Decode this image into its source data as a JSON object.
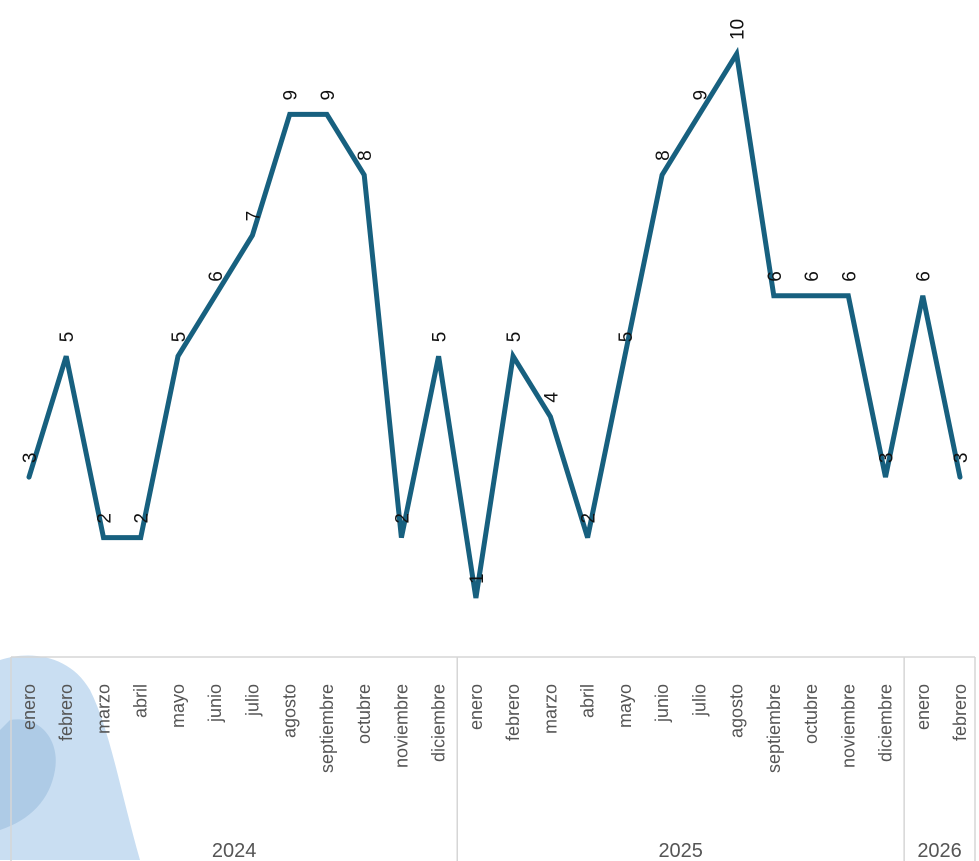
{
  "chart_data": {
    "type": "line",
    "series": [
      {
        "x": [
          "enero",
          "febrero",
          "marzo",
          "abril",
          "mayo",
          "junio",
          "julio",
          "agosto",
          "septiembre",
          "octubre",
          "noviembre",
          "diciembre",
          "enero",
          "febrero",
          "marzo",
          "abril",
          "mayo",
          "junio",
          "julio",
          "agosto",
          "septiembre",
          "octubre",
          "noviembre",
          "diciembre",
          "enero",
          "febrero"
        ],
        "values": [
          3,
          5,
          2,
          2,
          5,
          6,
          7,
          9,
          9,
          8,
          2,
          5,
          1,
          5,
          4,
          2,
          5,
          8,
          9,
          10,
          6,
          6,
          6,
          3,
          6,
          3
        ]
      }
    ],
    "year_groups": [
      {
        "year": "2024",
        "months": 12
      },
      {
        "year": "2025",
        "months": 12
      },
      {
        "year": "2026",
        "months": 2
      }
    ],
    "ylim": [
      1,
      10
    ],
    "line_color": "#17607f",
    "grid": false,
    "legend": "none"
  }
}
